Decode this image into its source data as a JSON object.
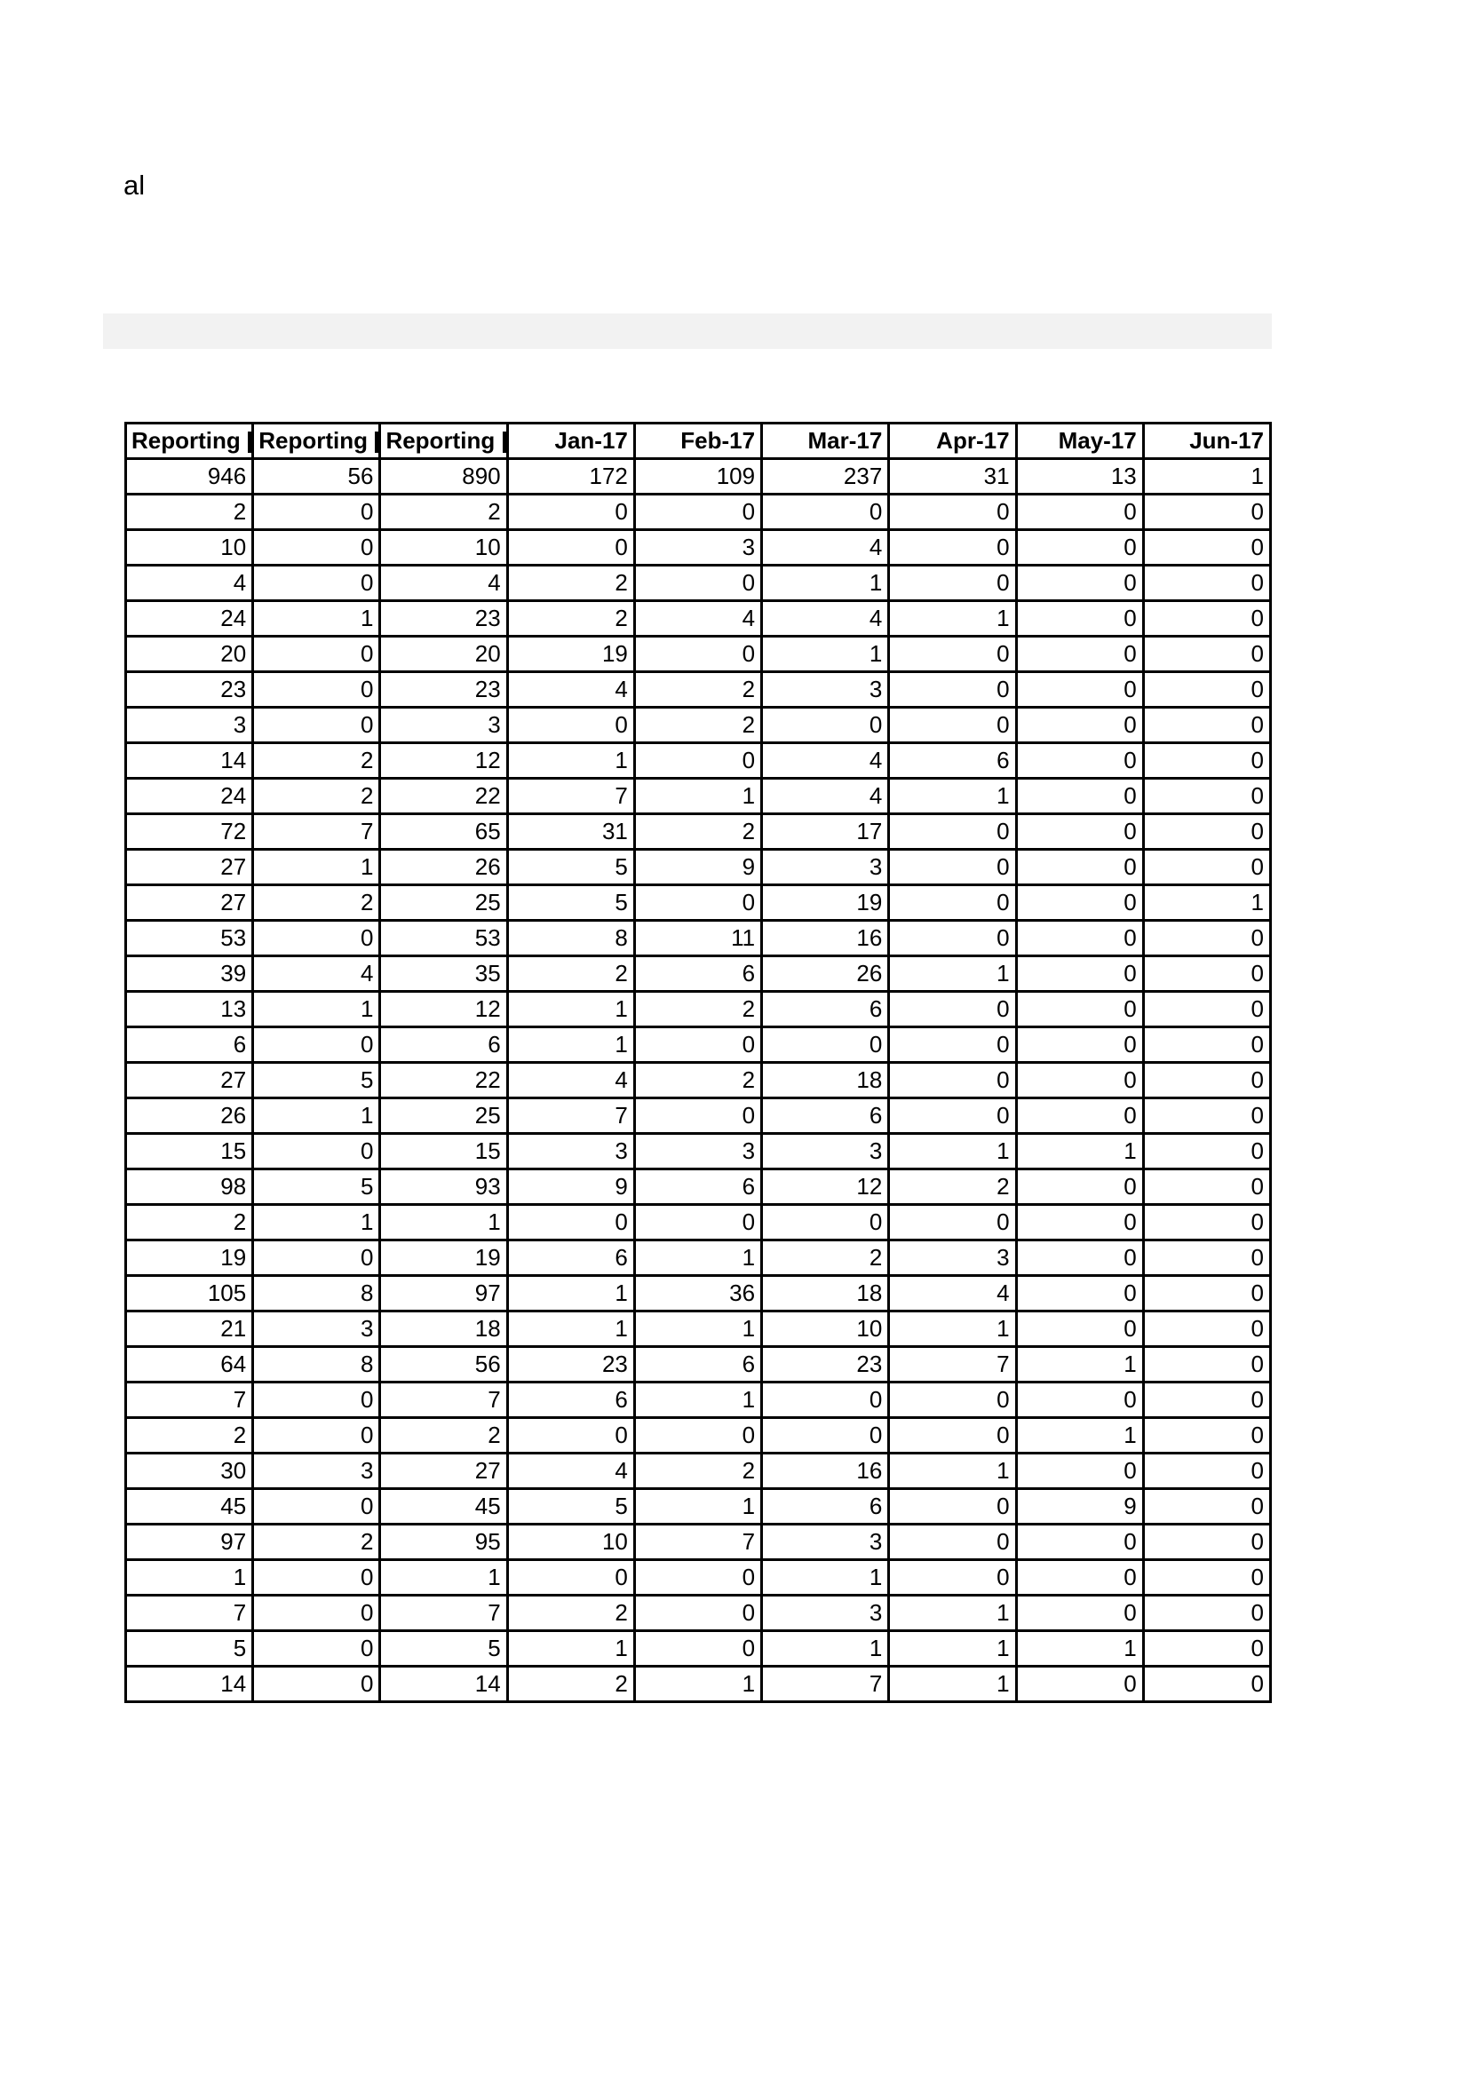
{
  "page": {
    "top_text": "al"
  },
  "highlight_bar": {
    "color": "#f2f2f2"
  },
  "table": {
    "columns": [
      {
        "label": "Reporting",
        "align": "left",
        "clipped": true
      },
      {
        "label": "Reporting",
        "align": "left",
        "clipped": true
      },
      {
        "label": "Reporting",
        "align": "left",
        "clipped": true
      },
      {
        "label": "Jan-17",
        "align": "right",
        "clipped": false
      },
      {
        "label": "Feb-17",
        "align": "right",
        "clipped": false
      },
      {
        "label": "Mar-17",
        "align": "right",
        "clipped": false
      },
      {
        "label": "Apr-17",
        "align": "right",
        "clipped": false
      },
      {
        "label": "May-17",
        "align": "right",
        "clipped": false
      },
      {
        "label": "Jun-17",
        "align": "right",
        "clipped": false
      }
    ],
    "rows": [
      [
        946,
        56,
        890,
        172,
        109,
        237,
        31,
        13,
        1
      ],
      [
        2,
        0,
        2,
        0,
        0,
        0,
        0,
        0,
        0
      ],
      [
        10,
        0,
        10,
        0,
        3,
        4,
        0,
        0,
        0
      ],
      [
        4,
        0,
        4,
        2,
        0,
        1,
        0,
        0,
        0
      ],
      [
        24,
        1,
        23,
        2,
        4,
        4,
        1,
        0,
        0
      ],
      [
        20,
        0,
        20,
        19,
        0,
        1,
        0,
        0,
        0
      ],
      [
        23,
        0,
        23,
        4,
        2,
        3,
        0,
        0,
        0
      ],
      [
        3,
        0,
        3,
        0,
        2,
        0,
        0,
        0,
        0
      ],
      [
        14,
        2,
        12,
        1,
        0,
        4,
        6,
        0,
        0
      ],
      [
        24,
        2,
        22,
        7,
        1,
        4,
        1,
        0,
        0
      ],
      [
        72,
        7,
        65,
        31,
        2,
        17,
        0,
        0,
        0
      ],
      [
        27,
        1,
        26,
        5,
        9,
        3,
        0,
        0,
        0
      ],
      [
        27,
        2,
        25,
        5,
        0,
        19,
        0,
        0,
        1
      ],
      [
        53,
        0,
        53,
        8,
        11,
        16,
        0,
        0,
        0
      ],
      [
        39,
        4,
        35,
        2,
        6,
        26,
        1,
        0,
        0
      ],
      [
        13,
        1,
        12,
        1,
        2,
        6,
        0,
        0,
        0
      ],
      [
        6,
        0,
        6,
        1,
        0,
        0,
        0,
        0,
        0
      ],
      [
        27,
        5,
        22,
        4,
        2,
        18,
        0,
        0,
        0
      ],
      [
        26,
        1,
        25,
        7,
        0,
        6,
        0,
        0,
        0
      ],
      [
        15,
        0,
        15,
        3,
        3,
        3,
        1,
        1,
        0
      ],
      [
        98,
        5,
        93,
        9,
        6,
        12,
        2,
        0,
        0
      ],
      [
        2,
        1,
        1,
        0,
        0,
        0,
        0,
        0,
        0
      ],
      [
        19,
        0,
        19,
        6,
        1,
        2,
        3,
        0,
        0
      ],
      [
        105,
        8,
        97,
        1,
        36,
        18,
        4,
        0,
        0
      ],
      [
        21,
        3,
        18,
        1,
        1,
        10,
        1,
        0,
        0
      ],
      [
        64,
        8,
        56,
        23,
        6,
        23,
        7,
        1,
        0
      ],
      [
        7,
        0,
        7,
        6,
        1,
        0,
        0,
        0,
        0
      ],
      [
        2,
        0,
        2,
        0,
        0,
        0,
        0,
        1,
        0
      ],
      [
        30,
        3,
        27,
        4,
        2,
        16,
        1,
        0,
        0
      ],
      [
        45,
        0,
        45,
        5,
        1,
        6,
        0,
        9,
        0
      ],
      [
        97,
        2,
        95,
        10,
        7,
        3,
        0,
        0,
        0
      ],
      [
        1,
        0,
        1,
        0,
        0,
        1,
        0,
        0,
        0
      ],
      [
        7,
        0,
        7,
        2,
        0,
        3,
        1,
        0,
        0
      ],
      [
        5,
        0,
        5,
        1,
        0,
        1,
        1,
        1,
        0
      ],
      [
        14,
        0,
        14,
        2,
        1,
        7,
        1,
        0,
        0
      ]
    ]
  }
}
